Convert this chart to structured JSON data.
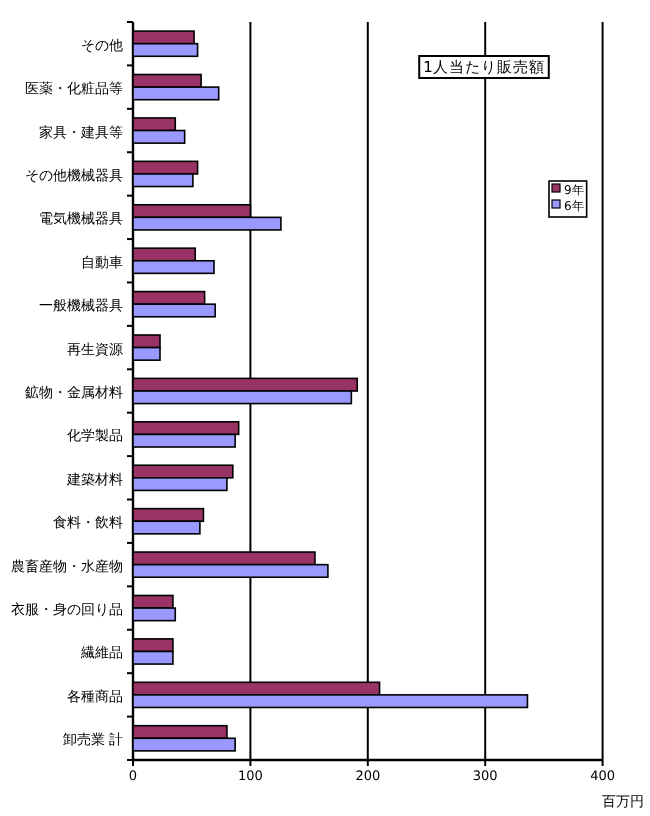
{
  "chart_data": {
    "type": "bar",
    "orientation": "horizontal",
    "categories": [
      "その他",
      "医薬・化粧品等",
      "家具・建具等",
      "その他機械器具",
      "電気機械器具",
      "自動車",
      "一般機械器具",
      "再生資源",
      "鉱物・金属材料",
      "化学製品",
      "建築材料",
      "食料・飲料",
      "農畜産物・水産物",
      "衣服・身の回り品",
      "繊維品",
      "各種商品",
      "卸売業 計"
    ],
    "series": [
      {
        "name": "9年",
        "color": "#993366",
        "values": [
          52,
          58,
          36,
          55,
          100,
          53,
          61,
          23,
          191,
          90,
          85,
          60,
          155,
          34,
          34,
          210,
          80
        ]
      },
      {
        "name": "6年",
        "color": "#9999ff",
        "values": [
          55,
          73,
          44,
          51,
          126,
          69,
          70,
          23,
          186,
          87,
          80,
          57,
          166,
          36,
          34,
          336,
          87
        ]
      }
    ],
    "xlim": [
      0,
      400
    ],
    "xticks": [
      0,
      100,
      200,
      300,
      400
    ],
    "xlabel": "百万円",
    "grid": "x",
    "legend": "right",
    "annotations": [
      "1人当たり販売額"
    ]
  }
}
